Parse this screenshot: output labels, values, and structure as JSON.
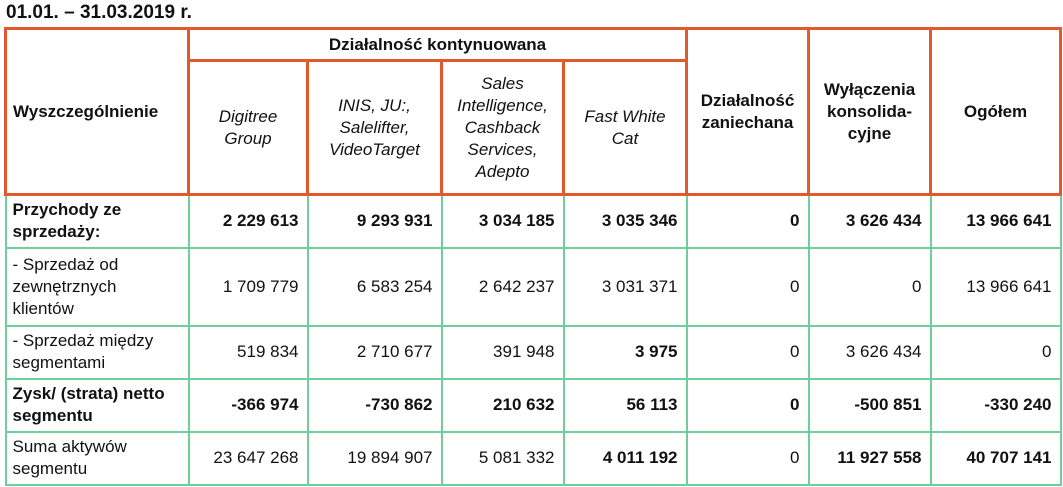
{
  "title": "01.01. – 31.03.2019 r.",
  "header": {
    "item": "Wyszczególnienie",
    "continuing_group": "Działalność kontynuowana",
    "segments": [
      "Digitree Group",
      "INIS, JU:, Salelifter, VideoTarget",
      "Sales Intelligence, Cashback Services, Adepto",
      "Fast White Cat"
    ],
    "discontinued": "Działalność zaniechana",
    "eliminations": "Wyłączenia konsolida-cyjne",
    "total": "Ogółem"
  },
  "rows": [
    {
      "label": "Przychody ze sprzedaży:",
      "values": [
        "2 229 613",
        "9 293 931",
        "3 034 185",
        "3 035 346",
        "0",
        "3 626 434",
        "13 966 641"
      ]
    },
    {
      "label": "- Sprzedaż od zewnętrznych klientów",
      "values": [
        "1 709 779",
        "6 583 254",
        "2 642 237",
        "3 031 371",
        "0",
        "0",
        "13 966 641"
      ]
    },
    {
      "label": "- Sprzedaż między segmentami",
      "values": [
        "519 834",
        "2 710 677",
        "391 948",
        "3 975",
        "0",
        "3 626 434",
        "0"
      ]
    },
    {
      "label": "Zysk/ (strata) netto segmentu",
      "values": [
        "-366 974",
        "-730 862",
        "210 632",
        "56 113",
        "0",
        "-500 851",
        "-330 240"
      ]
    },
    {
      "label": "Suma aktywów segmentu",
      "values": [
        "23 647 268",
        "19 894 907",
        "5 081 332",
        "4 011 192",
        "0",
        "11 927 558",
        "40 707 141"
      ]
    }
  ],
  "colors": {
    "header_border": "#e2592b",
    "body_border": "#6fcf9c"
  }
}
